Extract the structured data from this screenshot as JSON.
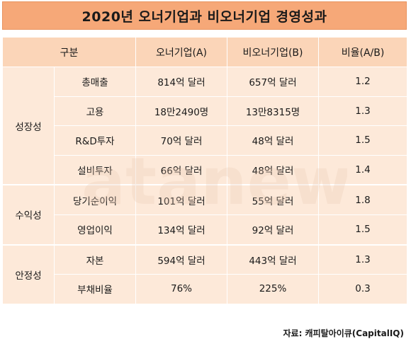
{
  "title": "2020년 오너기업과 비오너기업 경영성과",
  "headers": {
    "category": "구분",
    "owner": "오너기업(A)",
    "nonowner": "비오너기업(B)",
    "ratio": "비율(A/B)"
  },
  "groups": [
    {
      "name": "성장성",
      "rows": [
        {
          "item": "총매출",
          "owner": "814억 달러",
          "nonowner": "657억 달러",
          "ratio": "1.2"
        },
        {
          "item": "고용",
          "owner": "18만2490명",
          "nonowner": "13만8315명",
          "ratio": "1.3"
        },
        {
          "item": "R&D투자",
          "owner": "70억 달러",
          "nonowner": "48억 달러",
          "ratio": "1.5"
        },
        {
          "item": "설비투자",
          "owner": "66억 달러",
          "nonowner": "48억 달러",
          "ratio": "1.4"
        }
      ]
    },
    {
      "name": "수익성",
      "rows": [
        {
          "item": "당기순이익",
          "owner": "101억 달러",
          "nonowner": "55억 달러",
          "ratio": "1.8"
        },
        {
          "item": "영업이익",
          "owner": "134억 달러",
          "nonowner": "92억 달러",
          "ratio": "1.5"
        }
      ]
    },
    {
      "name": "안정성",
      "rows": [
        {
          "item": "자본",
          "owner": "594억 달러",
          "nonowner": "443억 달러",
          "ratio": "1.3"
        },
        {
          "item": "부채비율",
          "owner": "76%",
          "nonowner": "225%",
          "ratio": "0.3"
        }
      ]
    }
  ],
  "source": "자료: 캐피탈아이큐(CapitalIQ)",
  "watermark": "datanews"
}
